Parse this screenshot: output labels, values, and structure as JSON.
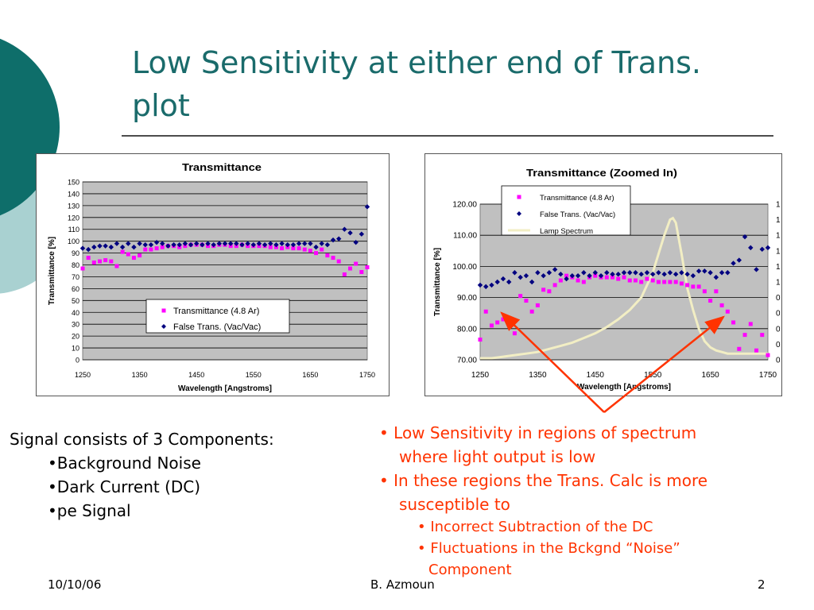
{
  "slide": {
    "title_line1": "Low Sensitivity at either end of Trans.",
    "title_line2": "plot"
  },
  "left_text": {
    "heading": "Signal consists of 3 Components:",
    "items": [
      "•Background Noise",
      "•Dark Current (DC)",
      "•pe Signal"
    ]
  },
  "right_text": {
    "b1_l1": "• Low Sensitivity in regions of spectrum",
    "b1_l2": "where light output is low",
    "b2_l1": "• In these regions the Trans. Calc is more",
    "b2_l2": "susceptible to",
    "s1": "• Incorrect Subtraction of the DC",
    "s2_l1": "• Fluctuations in the Bckgnd “Noise”",
    "s2_l2": "Component"
  },
  "footer": {
    "date": "10/10/06",
    "author": "B. Azmoun",
    "page": "2"
  },
  "colors": {
    "title": "#1a6b6b",
    "accent_text": "#ff3300",
    "plot_bg": "#c0c0c0",
    "magenta": "#ff00ff",
    "navy": "#000080",
    "lamp": "#f2eec4",
    "deco_dark": "#0e6e6a",
    "deco_light": "#a9d1d1"
  },
  "chart_data": [
    {
      "type": "scatter",
      "title": "Transmittance",
      "xlabel": "Wavelength [Angstroms]",
      "ylabel": "Transmittance [%]",
      "xlim": [
        1250,
        1750
      ],
      "ylim": [
        0,
        150
      ],
      "x_ticks": [
        "1250",
        "1350",
        "1450",
        "1550",
        "1650",
        "1750"
      ],
      "y_ticks": [
        "0",
        "10",
        "20",
        "30",
        "40",
        "50",
        "60",
        "70",
        "80",
        "90",
        "100",
        "110",
        "120",
        "130",
        "140",
        "150"
      ],
      "grid": true,
      "legend_position": "bottom-center",
      "series": [
        {
          "name": "Transmittance (4.8 Ar)",
          "marker": "square",
          "color": "#ff00ff",
          "x": [
            1250,
            1260,
            1270,
            1280,
            1290,
            1300,
            1310,
            1320,
            1330,
            1340,
            1350,
            1360,
            1370,
            1380,
            1390,
            1400,
            1410,
            1420,
            1430,
            1440,
            1450,
            1460,
            1470,
            1480,
            1490,
            1500,
            1510,
            1520,
            1530,
            1540,
            1550,
            1560,
            1570,
            1580,
            1590,
            1600,
            1610,
            1620,
            1630,
            1640,
            1650,
            1660,
            1670,
            1680,
            1690,
            1700,
            1710,
            1720,
            1730,
            1740,
            1750
          ],
          "y": [
            77,
            86,
            82,
            83,
            84,
            83,
            79,
            91,
            89,
            86,
            88,
            93,
            93,
            94,
            95,
            96,
            96,
            95,
            96,
            97,
            97,
            97,
            96,
            96,
            97,
            97,
            96,
            96,
            97,
            96,
            96,
            96,
            96,
            95,
            95,
            94,
            95,
            94,
            94,
            93,
            92,
            90,
            93,
            88,
            86,
            83,
            72,
            77,
            81,
            74,
            78
          ]
        },
        {
          "name": "False Trans. (Vac/Vac)",
          "marker": "diamond",
          "color": "#000080",
          "x": [
            1250,
            1260,
            1270,
            1280,
            1290,
            1300,
            1310,
            1320,
            1330,
            1340,
            1350,
            1360,
            1370,
            1380,
            1390,
            1400,
            1410,
            1420,
            1430,
            1440,
            1450,
            1460,
            1470,
            1480,
            1490,
            1500,
            1510,
            1520,
            1530,
            1540,
            1550,
            1560,
            1570,
            1580,
            1590,
            1600,
            1610,
            1620,
            1630,
            1640,
            1650,
            1660,
            1670,
            1680,
            1690,
            1700,
            1710,
            1720,
            1730,
            1740,
            1750
          ],
          "y": [
            94,
            93,
            95,
            96,
            96,
            95,
            98,
            95,
            98,
            95,
            98,
            97,
            97,
            99,
            98,
            96,
            97,
            97,
            98,
            97,
            98,
            97,
            98,
            97,
            98,
            98,
            98,
            98,
            97,
            98,
            97,
            98,
            97,
            98,
            97,
            98,
            97,
            97,
            98,
            98,
            98,
            95,
            98,
            97,
            101,
            102,
            110,
            107,
            99,
            106,
            129
          ]
        }
      ]
    },
    {
      "type": "scatter",
      "title": "Transmittance (Zoomed In)",
      "xlabel": "Wavelength [Angstroms]",
      "ylabel": "Transmittance [%]",
      "xlim": [
        1250,
        1750
      ],
      "ylim": [
        70,
        120
      ],
      "x_ticks": [
        "1250",
        "1350",
        "1450",
        "1550",
        "1650",
        "1750"
      ],
      "y_ticks": [
        "70.00",
        "80.00",
        "90.00",
        "100.00",
        "110.00",
        "120.00"
      ],
      "right_axis_ticks": [
        "0",
        "0",
        "0",
        "0",
        "0",
        "1",
        "1",
        "1",
        "1",
        "1",
        "1"
      ],
      "grid": true,
      "legend_position": "top-center",
      "series": [
        {
          "name": "Transmittance (4.8 Ar)",
          "marker": "square",
          "color": "#ff00ff",
          "x": [
            1250,
            1260,
            1270,
            1280,
            1290,
            1300,
            1310,
            1320,
            1330,
            1340,
            1350,
            1360,
            1370,
            1380,
            1390,
            1400,
            1410,
            1420,
            1430,
            1440,
            1450,
            1460,
            1470,
            1480,
            1490,
            1500,
            1510,
            1520,
            1530,
            1540,
            1550,
            1560,
            1570,
            1580,
            1590,
            1600,
            1610,
            1620,
            1630,
            1640,
            1650,
            1660,
            1670,
            1680,
            1690,
            1700,
            1710,
            1720,
            1730,
            1740,
            1750
          ],
          "y": [
            76.5,
            85.5,
            81,
            82,
            83,
            81.5,
            78.5,
            90.5,
            89,
            85.5,
            87.5,
            92.5,
            92,
            94,
            95.5,
            97,
            96.5,
            95.5,
            95,
            96.5,
            97,
            96.5,
            96.5,
            96.5,
            96,
            96.5,
            95.5,
            95.5,
            95,
            96,
            95.5,
            95,
            95,
            95,
            95,
            94.5,
            94,
            93.5,
            93.5,
            92,
            89,
            92,
            87.5,
            85.5,
            82,
            73.5,
            78,
            81.5,
            73,
            78,
            71.5
          ]
        },
        {
          "name": "False Trans. (Vac/Vac)",
          "marker": "diamond",
          "color": "#000080",
          "x": [
            1250,
            1260,
            1270,
            1280,
            1290,
            1300,
            1310,
            1320,
            1330,
            1340,
            1350,
            1360,
            1370,
            1380,
            1390,
            1400,
            1410,
            1420,
            1430,
            1440,
            1450,
            1460,
            1470,
            1480,
            1490,
            1500,
            1510,
            1520,
            1530,
            1540,
            1550,
            1560,
            1570,
            1580,
            1590,
            1600,
            1610,
            1620,
            1630,
            1640,
            1650,
            1660,
            1670,
            1680,
            1690,
            1700,
            1710,
            1720,
            1730,
            1740,
            1750
          ],
          "y": [
            94,
            93.5,
            94,
            95,
            96,
            95,
            98,
            96.5,
            97,
            95,
            98,
            97,
            98,
            99,
            97.5,
            96,
            97,
            97,
            98,
            97,
            98,
            97,
            98,
            97.5,
            97.5,
            98,
            98,
            98,
            97.5,
            98,
            97.5,
            98,
            97.5,
            98,
            97.5,
            98,
            97.5,
            97,
            98.5,
            98.5,
            98,
            96.5,
            98,
            98,
            101,
            102,
            109.5,
            106,
            99,
            105.5,
            106
          ]
        },
        {
          "name": "Lamp Spectrum",
          "marker": "line",
          "color": "#f2eec4",
          "x": [
            1250,
            1270,
            1290,
            1310,
            1330,
            1350,
            1370,
            1390,
            1410,
            1430,
            1450,
            1470,
            1490,
            1510,
            1530,
            1550,
            1560,
            1570,
            1580,
            1585,
            1590,
            1600,
            1610,
            1620,
            1630,
            1640,
            1650,
            1660,
            1670,
            1680,
            1700,
            1720,
            1740,
            1750
          ],
          "y": [
            70.5,
            70.5,
            71,
            71.5,
            72,
            72.5,
            73.5,
            74.5,
            75.5,
            77,
            78.5,
            80.5,
            83,
            86,
            90,
            98,
            104,
            110,
            115,
            115.5,
            114,
            104,
            93,
            86,
            80,
            76,
            74,
            73,
            72.5,
            72,
            72,
            72,
            72,
            72
          ]
        }
      ]
    }
  ]
}
